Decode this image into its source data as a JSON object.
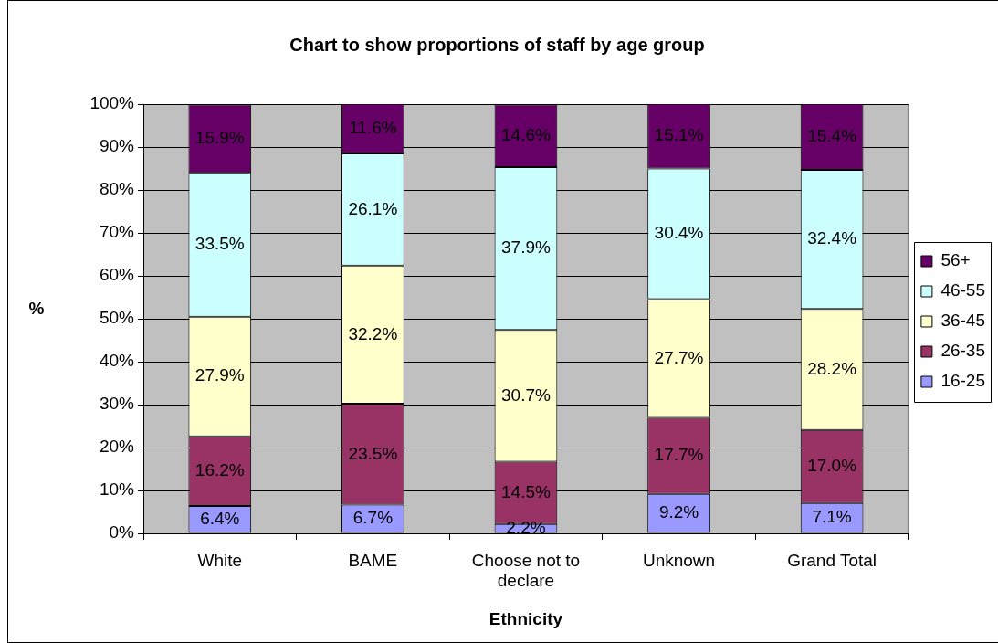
{
  "chart_data": {
    "type": "bar",
    "title": "Chart to show proportions of staff by age group",
    "xlabel": "Ethnicity",
    "ylabel": "%",
    "categories": [
      "White",
      "BAME",
      "Choose not to declare",
      "Unknown",
      "Grand Total"
    ],
    "stacked": true,
    "series": [
      {
        "name": "16-25",
        "color": "#9999ff",
        "values": [
          6.4,
          6.7,
          2.2,
          9.2,
          7.1
        ],
        "value_labels": [
          "6.4%",
          "6.7%",
          "2.2%",
          "9.2%",
          "7.1%"
        ]
      },
      {
        "name": "26-35",
        "color": "#993366",
        "values": [
          16.2,
          23.5,
          14.5,
          17.7,
          17.0
        ],
        "value_labels": [
          "16.2%",
          "23.5%",
          "14.5%",
          "17.7%",
          "17.0%"
        ]
      },
      {
        "name": "36-45",
        "color": "#ffffcc",
        "values": [
          27.9,
          32.2,
          30.7,
          27.7,
          28.2
        ],
        "value_labels": [
          "27.9%",
          "32.2%",
          "30.7%",
          "27.7%",
          "28.2%"
        ]
      },
      {
        "name": "46-55",
        "color": "#ccffff",
        "values": [
          33.5,
          26.1,
          37.9,
          30.4,
          32.4
        ],
        "value_labels": [
          "33.5%",
          "26.1%",
          "37.9%",
          "30.4%",
          "32.4%"
        ]
      },
      {
        "name": "56+",
        "color": "#660066",
        "values": [
          15.9,
          11.6,
          14.6,
          15.1,
          15.4
        ],
        "value_labels": [
          "15.9%",
          "11.6%",
          "14.6%",
          "15.1%",
          "15.4%"
        ]
      }
    ],
    "ylim": [
      0,
      100
    ],
    "yticks": [
      {
        "value": 0,
        "label": "0%"
      },
      {
        "value": 10,
        "label": "10%"
      },
      {
        "value": 20,
        "label": "20%"
      },
      {
        "value": 30,
        "label": "30%"
      },
      {
        "value": 40,
        "label": "40%"
      },
      {
        "value": 50,
        "label": "50%"
      },
      {
        "value": 60,
        "label": "60%"
      },
      {
        "value": 70,
        "label": "70%"
      },
      {
        "value": 80,
        "label": "80%"
      },
      {
        "value": 90,
        "label": "90%"
      },
      {
        "value": 100,
        "label": "100%"
      }
    ],
    "grid": "y",
    "legend": "right"
  }
}
